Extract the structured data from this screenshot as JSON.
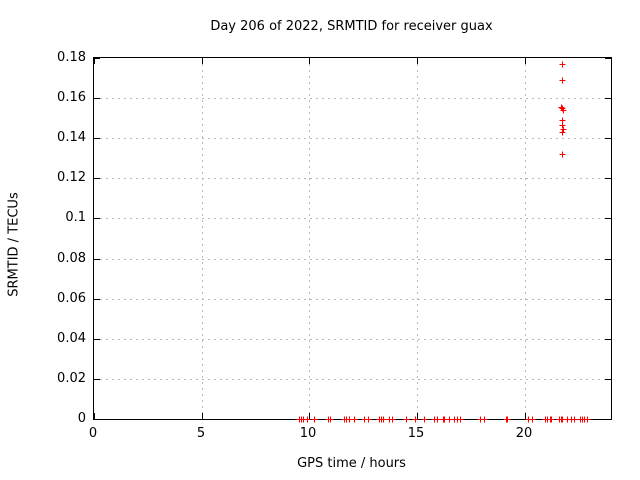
{
  "chart_data": {
    "type": "scatter",
    "title": "Day 206 of 2022, SRMTID for receiver guax",
    "xlabel": "GPS time / hours",
    "ylabel": "SRMTID / TECUs",
    "xlim": [
      0,
      24
    ],
    "ylim": [
      0,
      0.18
    ],
    "grid": true,
    "legend": "none",
    "marker": "plus",
    "marker_size": 7,
    "colors": {
      "marker": "#ff0000",
      "grid": "#b8b8b8",
      "frame": "#000000",
      "text": "#000000",
      "background": "#ffffff"
    },
    "x_ticks": [
      {
        "value": 0,
        "label": "0"
      },
      {
        "value": 5,
        "label": "5"
      },
      {
        "value": 10,
        "label": "10"
      },
      {
        "value": 15,
        "label": "15"
      },
      {
        "value": 20,
        "label": "20"
      }
    ],
    "y_ticks": [
      {
        "value": 0,
        "label": "0"
      },
      {
        "value": 0.02,
        "label": "0.02"
      },
      {
        "value": 0.04,
        "label": "0.04"
      },
      {
        "value": 0.06,
        "label": "0.06"
      },
      {
        "value": 0.08,
        "label": "0.08"
      },
      {
        "value": 0.1,
        "label": "0.1"
      },
      {
        "value": 0.12,
        "label": "0.12"
      },
      {
        "value": 0.14,
        "label": "0.14"
      },
      {
        "value": 0.16,
        "label": "0.16"
      },
      {
        "value": 0.18,
        "label": "0.18"
      }
    ],
    "series": [
      {
        "name": "srmtid",
        "points": [
          [
            21.72,
            0.177
          ],
          [
            21.72,
            0.169
          ],
          [
            21.69,
            0.1555
          ],
          [
            21.73,
            0.155
          ],
          [
            21.76,
            0.154
          ],
          [
            21.72,
            0.149
          ],
          [
            21.72,
            0.1465
          ],
          [
            21.75,
            0.1445
          ],
          [
            21.72,
            0.143
          ],
          [
            21.72,
            0.132
          ],
          [
            9.53,
            0
          ],
          [
            9.63,
            0
          ],
          [
            9.72,
            0
          ],
          [
            9.88,
            0
          ],
          [
            10.22,
            0
          ],
          [
            10.86,
            0
          ],
          [
            10.95,
            0
          ],
          [
            11.62,
            0
          ],
          [
            11.68,
            0
          ],
          [
            11.86,
            0
          ],
          [
            12.05,
            0
          ],
          [
            12.52,
            0
          ],
          [
            12.73,
            0
          ],
          [
            13.22,
            0
          ],
          [
            13.3,
            0
          ],
          [
            13.42,
            0
          ],
          [
            13.71,
            0
          ],
          [
            13.85,
            0
          ],
          [
            14.49,
            0
          ],
          [
            14.9,
            0
          ],
          [
            15.34,
            0
          ],
          [
            15.8,
            0
          ],
          [
            15.9,
            0
          ],
          [
            16.18,
            0
          ],
          [
            16.25,
            0
          ],
          [
            16.5,
            0
          ],
          [
            16.7,
            0
          ],
          [
            16.83,
            0
          ],
          [
            16.97,
            0
          ],
          [
            17.9,
            0
          ],
          [
            18.1,
            0
          ],
          [
            19.12,
            0
          ],
          [
            19.18,
            0
          ],
          [
            20.15,
            0
          ],
          [
            20.34,
            0
          ],
          [
            20.95,
            0
          ],
          [
            21.05,
            0
          ],
          [
            21.15,
            0
          ],
          [
            21.22,
            0
          ],
          [
            21.58,
            0
          ],
          [
            21.66,
            0
          ],
          [
            21.74,
            0
          ],
          [
            21.98,
            0
          ],
          [
            22.15,
            0
          ],
          [
            22.3,
            0
          ],
          [
            22.55,
            0
          ],
          [
            22.65,
            0
          ],
          [
            22.75,
            0
          ],
          [
            22.88,
            0
          ]
        ]
      }
    ]
  }
}
